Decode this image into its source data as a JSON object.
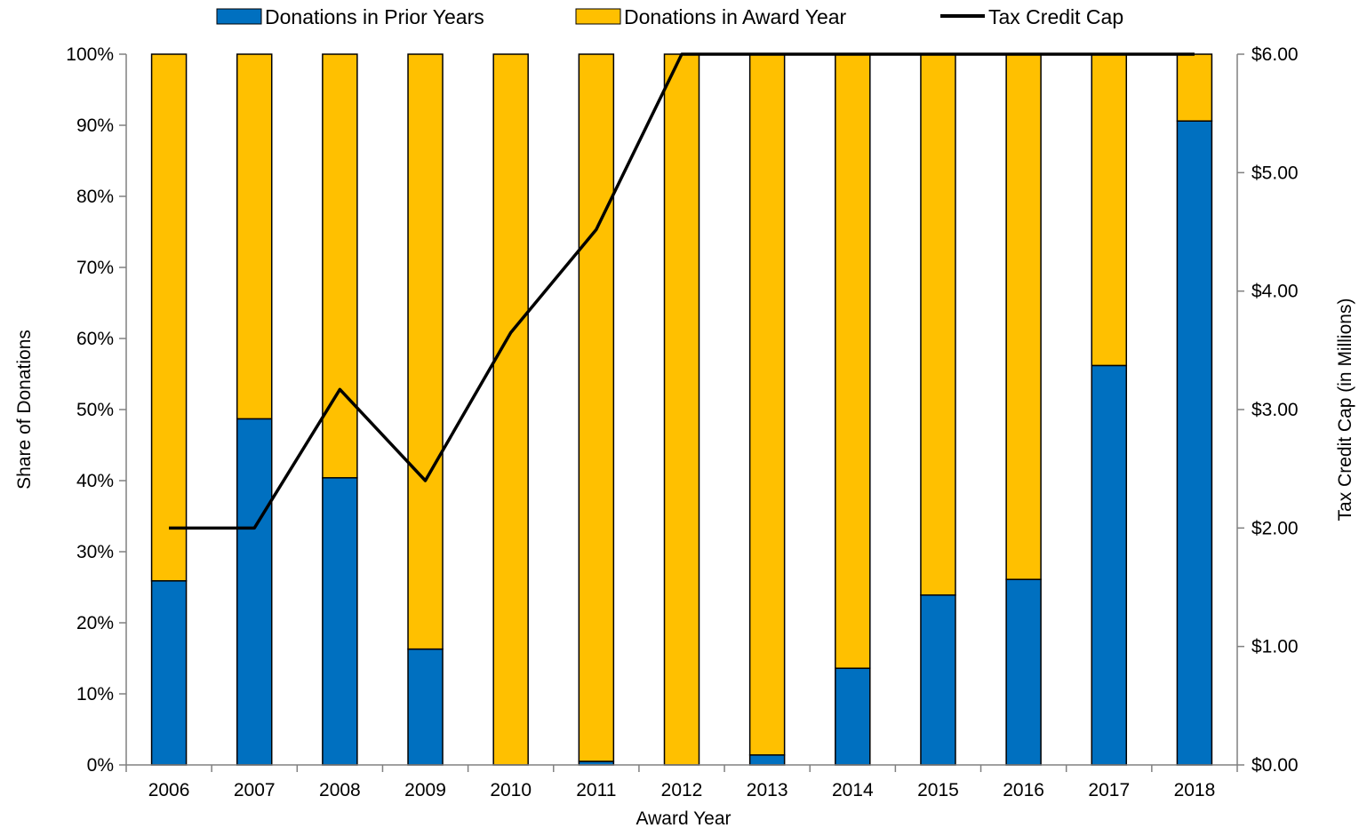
{
  "chart_data": {
    "type": "bar",
    "stacked": true,
    "categories": [
      "2006",
      "2007",
      "2008",
      "2009",
      "2010",
      "2011",
      "2012",
      "2013",
      "2014",
      "2015",
      "2016",
      "2017",
      "2018"
    ],
    "series": [
      {
        "name": "Donations in Prior Years",
        "kind": "bar",
        "axis": "left",
        "color": "#0070C0",
        "values": [
          25.9,
          48.7,
          40.4,
          16.3,
          0,
          0.5,
          0,
          1.4,
          13.6,
          23.9,
          26.1,
          56.2,
          90.6
        ]
      },
      {
        "name": "Donations in Award Year",
        "kind": "bar",
        "axis": "left",
        "color": "#FFC000",
        "values": [
          74.1,
          51.3,
          59.6,
          83.7,
          100,
          99.5,
          100,
          98.6,
          86.4,
          76.1,
          73.9,
          43.8,
          9.4
        ]
      },
      {
        "name": "Tax Credit Cap",
        "kind": "line",
        "axis": "right",
        "color": "#000000",
        "values": [
          2.0,
          2.0,
          3.17,
          2.4,
          3.65,
          4.52,
          6.0,
          6.0,
          6.0,
          6.0,
          6.0,
          6.0,
          6.0
        ]
      }
    ],
    "xlabel": "Award Year",
    "ylabel": "Share of Donations",
    "y2label": "Tax Credit Cap (in Millions)",
    "ylim": [
      0,
      100
    ],
    "y2lim": [
      0,
      6
    ],
    "yticks": [
      "0%",
      "10%",
      "20%",
      "30%",
      "40%",
      "50%",
      "60%",
      "70%",
      "80%",
      "90%",
      "100%"
    ],
    "y2ticks": [
      "$0.00",
      "$1.00",
      "$2.00",
      "$3.00",
      "$4.00",
      "$5.00",
      "$6.00"
    ],
    "grid": false,
    "legend_position": "top"
  }
}
